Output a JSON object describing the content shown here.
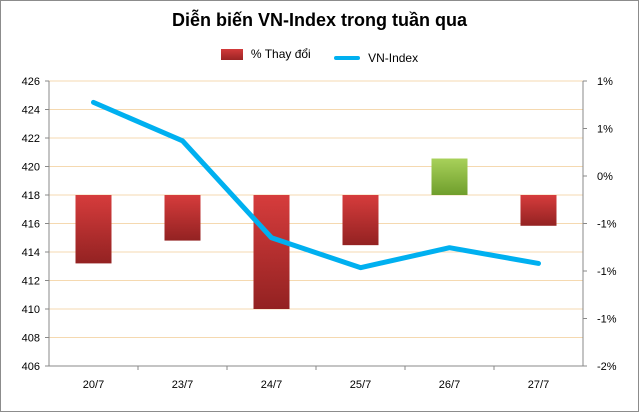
{
  "chart_data": {
    "type": "bar+line",
    "title": "Diễn biến VN-Index trong tuần qua",
    "categories": [
      "20/7",
      "23/7",
      "24/7",
      "25/7",
      "26/7",
      "27/7"
    ],
    "series": [
      {
        "name": "% Thay đổi",
        "type": "bar",
        "axis": "right",
        "values": [
          -0.6,
          -0.4,
          -1.0,
          -0.44,
          0.32,
          -0.27
        ]
      },
      {
        "name": "VN-Index",
        "type": "line",
        "axis": "left",
        "values": [
          424.5,
          421.8,
          415.0,
          412.9,
          414.3,
          413.2
        ]
      }
    ],
    "y_left": {
      "min": 406,
      "max": 426,
      "step": 2,
      "ticks": [
        "406",
        "408",
        "410",
        "412",
        "414",
        "416",
        "418",
        "420",
        "422",
        "424",
        "426"
      ]
    },
    "y_right": {
      "min": -1.5,
      "max": 1.0,
      "ticks": [
        "-2%",
        "-1%",
        "-1%",
        "-1%",
        "0%",
        "1%",
        "1%"
      ]
    },
    "grid": true,
    "legend_position": "top"
  },
  "colors": {
    "bar_negative": "#b52e2e",
    "bar_positive": "#8cbf3f",
    "line": "#00b0f0",
    "grid": "#f5d9b0"
  }
}
